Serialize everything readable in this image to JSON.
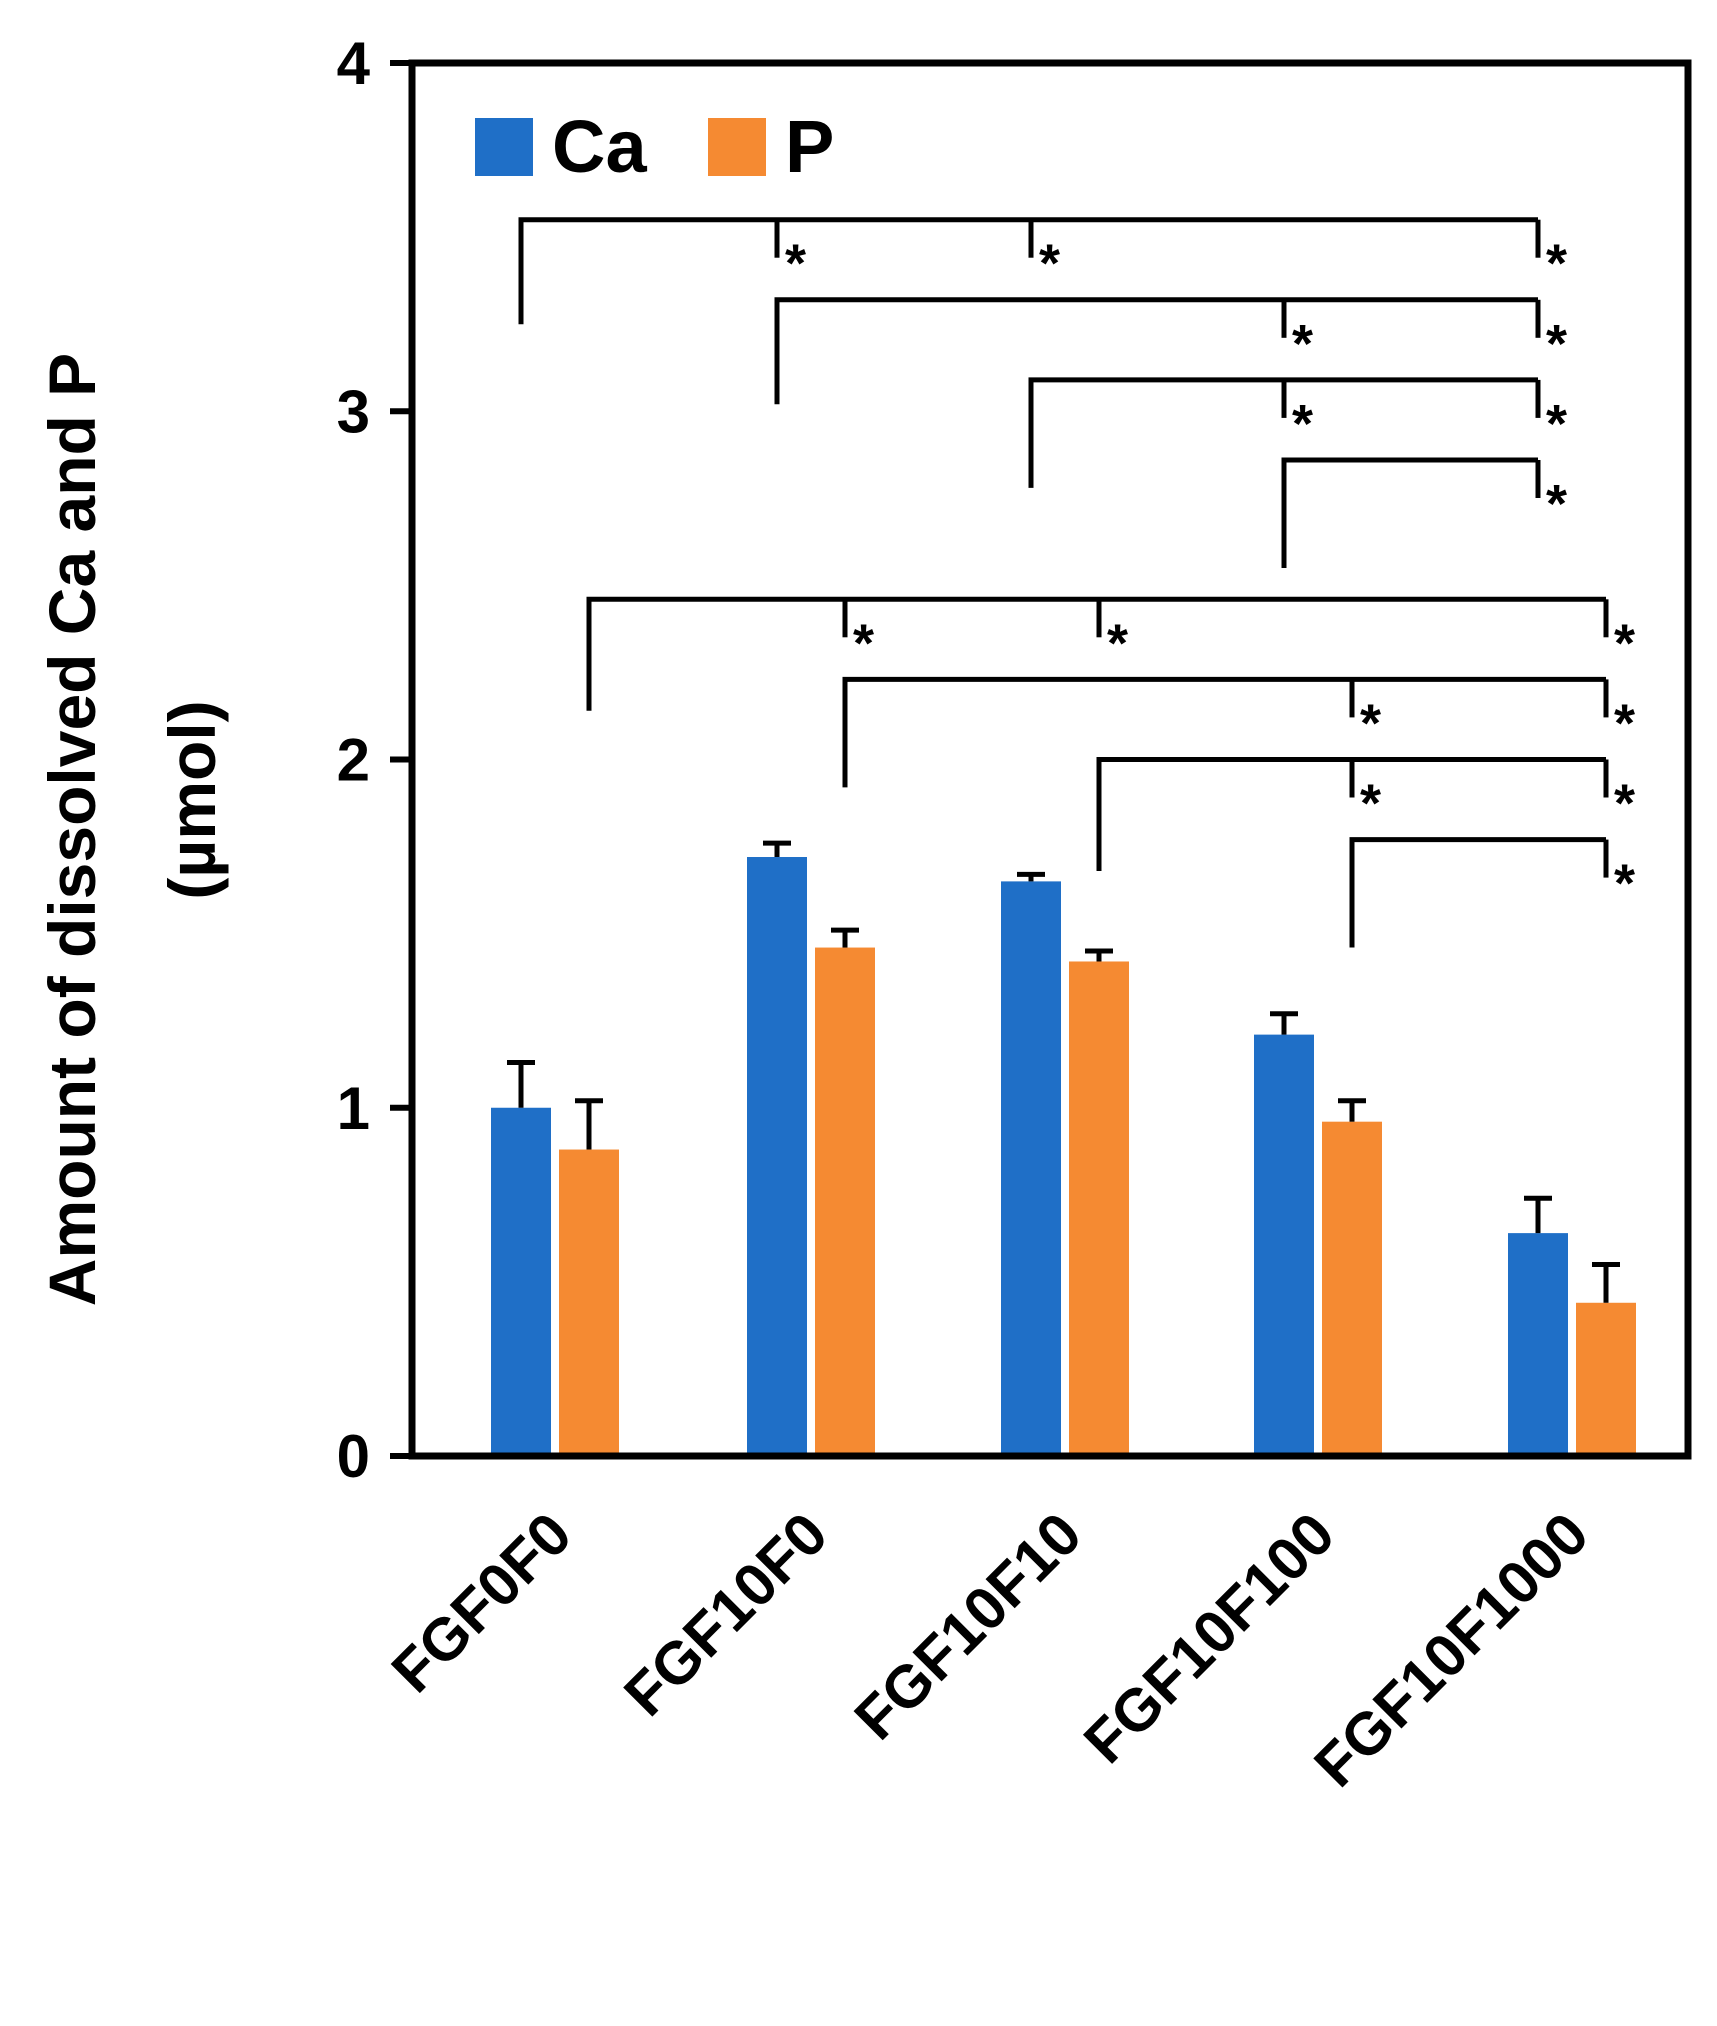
{
  "chart_data": {
    "type": "bar",
    "title": "",
    "xlabel": "",
    "ylabel_line1": "Amount of dissolved Ca and P",
    "ylabel_line2": "(µmol)",
    "ylim": [
      0,
      4
    ],
    "yticks": [
      0,
      1,
      2,
      3,
      4
    ],
    "ytick_labels": [
      "0",
      "1",
      "2",
      "3",
      "4"
    ],
    "grid": false,
    "legend_position": "top-left",
    "categories": [
      "FGF0F0",
      "FGF10F0",
      "FGF10F10",
      "FGF10F100",
      "FGF10F1000"
    ],
    "series": [
      {
        "name": "Ca",
        "color": "#1f6fc7",
        "values": [
          1.0,
          1.72,
          1.65,
          1.21,
          0.64
        ],
        "errors": [
          0.13,
          0.04,
          0.02,
          0.06,
          0.1
        ]
      },
      {
        "name": "P",
        "color": "#f58a32",
        "values": [
          0.88,
          1.46,
          1.42,
          0.96,
          0.44
        ],
        "errors": [
          0.14,
          0.05,
          0.03,
          0.06,
          0.11
        ]
      }
    ],
    "significance": {
      "symbol": "*",
      "groups": [
        {
          "series": "Ca",
          "brackets": [
            {
              "from": 0,
              "to": [
                1,
                2,
                4
              ],
              "level": 3.55,
              "start": 3.25
            },
            {
              "from": 1,
              "to": [
                3,
                4
              ],
              "level": 3.32,
              "start": 3.02
            },
            {
              "from": 2,
              "to": [
                3,
                4
              ],
              "level": 3.09,
              "start": 2.78
            },
            {
              "from": 3,
              "to": [
                4
              ],
              "level": 2.86,
              "start": 2.55
            }
          ]
        },
        {
          "series": "P",
          "brackets": [
            {
              "from": 0,
              "to": [
                1,
                2,
                4
              ],
              "level": 2.46,
              "start": 2.14
            },
            {
              "from": 1,
              "to": [
                3,
                4
              ],
              "level": 2.23,
              "start": 1.92
            },
            {
              "from": 2,
              "to": [
                3,
                4
              ],
              "level": 2.0,
              "start": 1.68
            },
            {
              "from": 3,
              "to": [
                4
              ],
              "level": 1.77,
              "start": 1.46
            }
          ]
        }
      ]
    }
  }
}
